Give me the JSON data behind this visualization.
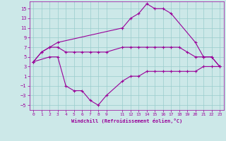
{
  "xlabel": "Windchill (Refroidissement éolien,°C)",
  "background_color": "#cce8e8",
  "grid_color": "#99cccc",
  "line_color": "#990099",
  "xlim": [
    -0.5,
    23.5
  ],
  "ylim": [
    -6,
    16.5
  ],
  "yticks": [
    -5,
    -3,
    -1,
    1,
    3,
    5,
    7,
    9,
    11,
    13,
    15
  ],
  "xticks": [
    0,
    1,
    2,
    3,
    4,
    5,
    6,
    7,
    8,
    9,
    11,
    12,
    13,
    14,
    15,
    16,
    17,
    18,
    19,
    20,
    21,
    22,
    23
  ],
  "series": [
    {
      "x": [
        0,
        1,
        2,
        3,
        11,
        12,
        13,
        14,
        15,
        16,
        17,
        20,
        21,
        22,
        23
      ],
      "y": [
        4,
        6,
        7,
        8,
        11,
        13,
        14,
        16,
        15,
        15,
        14,
        8,
        5,
        5,
        3
      ]
    },
    {
      "x": [
        0,
        1,
        2,
        3,
        4,
        5,
        6,
        7,
        8,
        9,
        11,
        12,
        13,
        14,
        15,
        16,
        17,
        18,
        19,
        20,
        21,
        22,
        23
      ],
      "y": [
        4,
        6,
        7,
        7,
        6,
        6,
        6,
        6,
        6,
        6,
        7,
        7,
        7,
        7,
        7,
        7,
        7,
        7,
        6,
        5,
        5,
        5,
        3
      ]
    },
    {
      "x": [
        0,
        2,
        3,
        4,
        5,
        6,
        7,
        8,
        9,
        11,
        12,
        13,
        14,
        15,
        16,
        17,
        18,
        19,
        20,
        21,
        22,
        23
      ],
      "y": [
        4,
        5,
        5,
        -1,
        -2,
        -2,
        -4,
        -5,
        -3,
        0,
        1,
        1,
        2,
        2,
        2,
        2,
        2,
        2,
        2,
        3,
        3,
        3
      ]
    }
  ]
}
